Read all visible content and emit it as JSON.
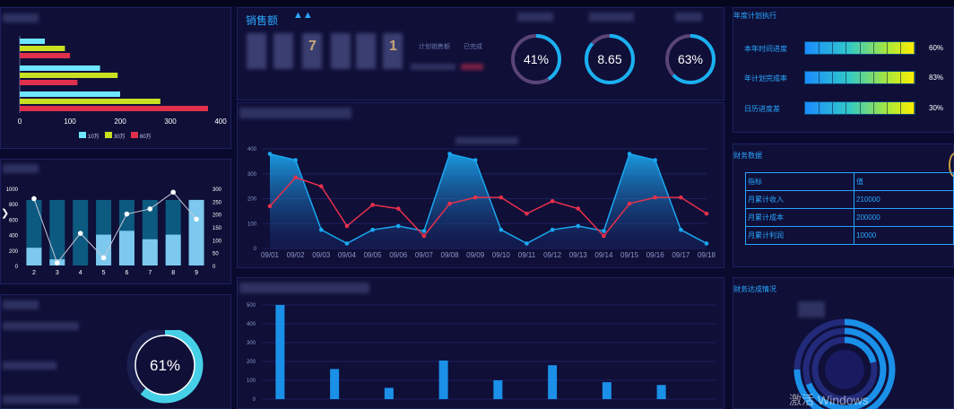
{
  "sales": {
    "title": "销售额",
    "plan_label": "计划销售额",
    "done_label": "已完成",
    "digits": [
      "7",
      "1"
    ]
  },
  "gauges": [
    {
      "value": "41%"
    },
    {
      "value": "8.65"
    },
    {
      "value": "63%"
    }
  ],
  "annual": {
    "title": "年度计划执行",
    "rows": [
      {
        "label": "本年时间进度",
        "value": "60%",
        "fill": 1.0
      },
      {
        "label": "年计划完成率",
        "value": "83%",
        "fill": 1.0
      },
      {
        "label": "日历进度差",
        "value": "30%",
        "fill": 1.0
      }
    ]
  },
  "finance": {
    "title": "财务数据",
    "headers": [
      "指标",
      "值"
    ],
    "rows": [
      [
        "月累计收入",
        "210000"
      ],
      [
        "月累计成本",
        "200000"
      ],
      [
        "月累计利润",
        "10000"
      ]
    ]
  },
  "achievement": {
    "title": "财务达成情况"
  },
  "donut": {
    "value": "61%",
    "fraction": 0.61
  },
  "watermark": "激活 Windows",
  "chart_data": [
    {
      "type": "bar",
      "orientation": "horizontal",
      "series": [
        {
          "name": "10万",
          "color": "#6ee6ff",
          "values": [
            50,
            160,
            200
          ]
        },
        {
          "name": "30万",
          "color": "#c8e020",
          "values": [
            90,
            195,
            280
          ]
        },
        {
          "name": "60万",
          "color": "#e0304c",
          "values": [
            100,
            115,
            375
          ]
        }
      ],
      "xticks": [
        "0",
        "100",
        "200",
        "300",
        "400"
      ],
      "xlim": [
        0,
        400
      ]
    },
    {
      "type": "bar",
      "categories": [
        "2",
        "3",
        "4",
        "5",
        "6",
        "7",
        "8",
        "9"
      ],
      "totals": [
        850,
        850,
        850,
        850,
        850,
        850,
        850,
        850
      ],
      "values": [
        230,
        80,
        0,
        400,
        450,
        340,
        400,
        850
      ],
      "line": [
        260,
        10,
        125,
        30,
        200,
        220,
        285,
        180
      ],
      "yleft": [
        "0",
        "200",
        "400",
        "600",
        "800",
        "1000"
      ],
      "yright": [
        "0",
        "50",
        "100",
        "150",
        "200",
        "250",
        "300"
      ],
      "ylim_left": [
        0,
        1000
      ],
      "ylim_right": [
        0,
        300
      ]
    },
    {
      "type": "line",
      "categories": [
        "09/01",
        "09/02",
        "09/03",
        "09/04",
        "09/05",
        "09/06",
        "09/07",
        "09/08",
        "09/09",
        "09/10",
        "09/11",
        "09/12",
        "09/13",
        "09/14",
        "09/15",
        "09/16",
        "09/17",
        "09/18"
      ],
      "series": [
        {
          "color": "#1aa8f0",
          "values": [
            380,
            355,
            75,
            20,
            75,
            90,
            70,
            380,
            355,
            75,
            20,
            75,
            90,
            70,
            380,
            355,
            75,
            20
          ],
          "area": true
        },
        {
          "color": "#e8304c",
          "values": [
            170,
            285,
            250,
            90,
            175,
            160,
            50,
            180,
            205,
            205,
            140,
            190,
            160,
            50,
            180,
            205,
            205,
            140
          ]
        }
      ],
      "yticks": [
        "0",
        "100",
        "200",
        "300",
        "400"
      ],
      "ylim": [
        0,
        400
      ]
    },
    {
      "type": "bar",
      "values": [
        500,
        160,
        60,
        205,
        100,
        180,
        90,
        75
      ],
      "yticks": [
        "0",
        "100",
        "200",
        "300",
        "400",
        "500"
      ],
      "ylim": [
        0,
        500
      ]
    }
  ]
}
